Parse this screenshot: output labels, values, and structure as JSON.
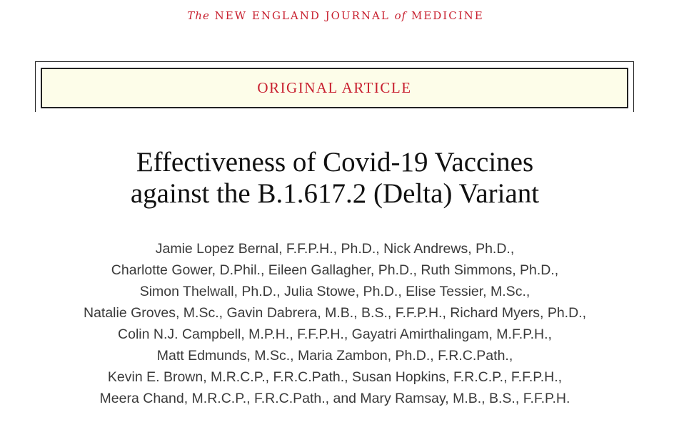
{
  "journal": {
    "the": "The",
    "name_part1": "NEW ENGLAND JOURNAL",
    "of": "of",
    "name_part2": "MEDICINE"
  },
  "article_type": "ORIGINAL ARTICLE",
  "title_lines": [
    "Effectiveness of Covid-19 Vaccines",
    "against the B.1.617.2 (Delta) Variant"
  ],
  "author_lines": [
    "Jamie Lopez Bernal, F.F.P.H., Ph.D., Nick Andrews, Ph.D.,",
    "Charlotte Gower, D.Phil., Eileen Gallagher, Ph.D., Ruth Simmons, Ph.D.,",
    "Simon Thelwall, Ph.D., Julia Stowe, Ph.D., Elise Tessier, M.Sc.,",
    "Natalie Groves, M.Sc., Gavin Dabrera, M.B., B.S., F.F.P.H., Richard Myers, Ph.D.,",
    "Colin N.J. Campbell, M.P.H., F.F.P.H., Gayatri Amirthalingam, M.F.P.H.,",
    "Matt Edmunds, M.Sc., Maria Zambon, Ph.D., F.R.C.Path.,",
    "Kevin E. Brown, M.R.C.P., F.R.C.Path., Susan Hopkins, F.R.C.P., F.F.P.H.,",
    "Meera Chand, M.R.C.P., F.R.C.Path., and Mary Ramsay, M.B., B.S., F.F.P.H."
  ],
  "colors": {
    "journal_red": "#c8202f",
    "banner_background": "#fdfde9",
    "author_text": "#3a3a3a"
  }
}
